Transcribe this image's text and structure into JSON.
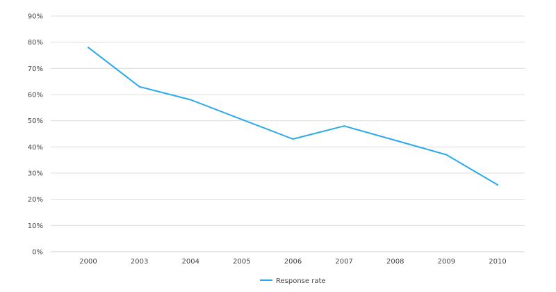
{
  "chart_data": {
    "type": "line",
    "categories": [
      "2000",
      "2003",
      "2004",
      "2005",
      "2006",
      "2007",
      "2008",
      "2009",
      "2010"
    ],
    "series": [
      {
        "name": "Response rate",
        "color": "#29a9ec",
        "values": [
          78,
          63,
          58,
          50.5,
          43,
          48,
          42.5,
          37,
          25.5
        ]
      }
    ],
    "y_ticks": [
      "0%",
      "10%",
      "20%",
      "30%",
      "40%",
      "50%",
      "60%",
      "70%",
      "80%",
      "90%"
    ],
    "ylim": [
      0,
      90
    ],
    "grid": true,
    "legend": "bottom-center"
  }
}
